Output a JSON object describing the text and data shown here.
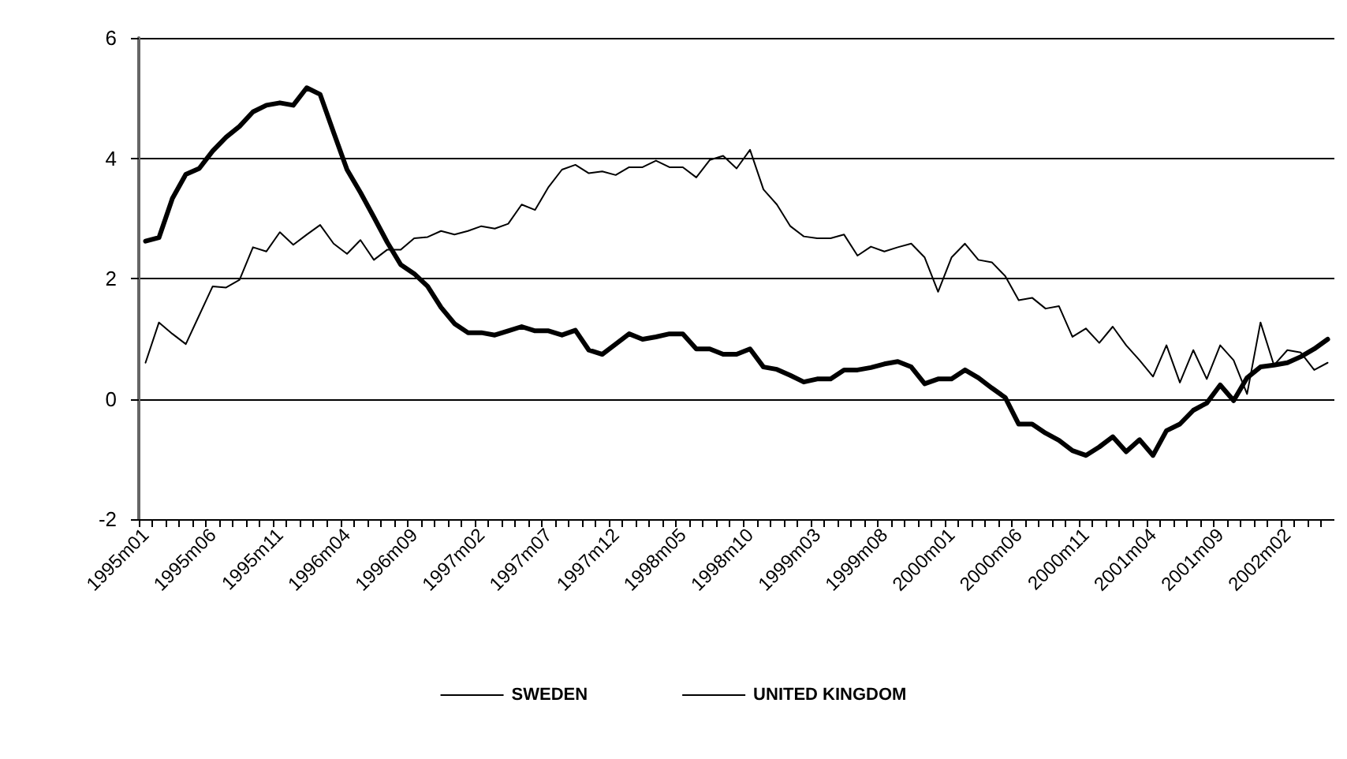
{
  "chart_data": {
    "type": "line",
    "categories": [
      "1995m01",
      null,
      null,
      null,
      null,
      "1995m06",
      null,
      null,
      null,
      null,
      "1995m11",
      null,
      null,
      null,
      null,
      "1996m04",
      null,
      null,
      null,
      null,
      "1996m09",
      null,
      null,
      null,
      null,
      "1997m02",
      null,
      null,
      null,
      null,
      "1997m07",
      null,
      null,
      null,
      null,
      "1997m12",
      null,
      null,
      null,
      null,
      "1998m05",
      null,
      null,
      null,
      null,
      "1998m10",
      null,
      null,
      null,
      null,
      "1999m03",
      null,
      null,
      null,
      null,
      "1999m08",
      null,
      null,
      null,
      null,
      "2000m01",
      null,
      null,
      null,
      null,
      "2000m06",
      null,
      null,
      null,
      null,
      "2000m11",
      null,
      null,
      null,
      null,
      "2001m04",
      null,
      null,
      null,
      null,
      "2001m09",
      null,
      null,
      null,
      null,
      "2002m02",
      null,
      null,
      null
    ],
    "series": [
      {
        "name": "SWEDEN",
        "color": "#000000",
        "values": [
          2.62,
          2.68,
          3.33,
          3.73,
          3.83,
          4.12,
          4.35,
          4.53,
          4.77,
          4.88,
          4.92,
          4.88,
          5.17,
          5.06,
          4.43,
          3.81,
          3.43,
          3.02,
          2.6,
          2.23,
          2.08,
          1.87,
          1.52,
          1.25,
          1.1,
          1.1,
          1.06,
          1.13,
          1.2,
          1.13,
          1.13,
          1.06,
          1.14,
          0.81,
          0.74,
          0.91,
          1.08,
          0.99,
          1.03,
          1.08,
          1.08,
          0.83,
          0.83,
          0.74,
          0.74,
          0.83,
          0.53,
          0.49,
          0.39,
          0.28,
          0.33,
          0.33,
          0.48,
          0.48,
          0.52,
          0.58,
          0.62,
          0.53,
          0.25,
          0.33,
          0.33,
          0.48,
          0.35,
          0.18,
          0.02,
          -0.42,
          -0.42,
          -0.57,
          -0.69,
          -0.86,
          -0.94,
          -0.8,
          -0.63,
          -0.88,
          -0.68,
          -0.94,
          -0.53,
          -0.42,
          -0.19,
          -0.07,
          0.23,
          -0.03,
          0.35,
          0.53,
          0.56,
          0.6,
          0.7,
          0.83,
          0.99
        ]
      },
      {
        "name": "UNITED KINGDOM",
        "color": "#000000",
        "values": [
          0.6,
          1.27,
          1.08,
          0.91,
          1.39,
          1.87,
          1.85,
          1.98,
          2.52,
          2.45,
          2.77,
          2.56,
          2.73,
          2.89,
          2.58,
          2.41,
          2.64,
          2.31,
          2.48,
          2.48,
          2.67,
          2.69,
          2.79,
          2.73,
          2.79,
          2.87,
          2.83,
          2.91,
          3.23,
          3.14,
          3.52,
          3.81,
          3.89,
          3.75,
          3.78,
          3.72,
          3.85,
          3.85,
          3.96,
          3.85,
          3.85,
          3.68,
          3.97,
          4.04,
          3.83,
          4.14,
          3.48,
          3.23,
          2.87,
          2.7,
          2.67,
          2.67,
          2.73,
          2.38,
          2.53,
          2.45,
          2.52,
          2.58,
          2.35,
          1.78,
          2.35,
          2.58,
          2.31,
          2.27,
          2.04,
          1.64,
          1.68,
          1.5,
          1.54,
          1.03,
          1.17,
          0.93,
          1.2,
          0.89,
          0.64,
          0.37,
          0.89,
          0.27,
          0.81,
          0.33,
          0.89,
          0.64,
          0.08,
          1.27,
          0.56,
          0.81,
          0.77,
          0.48,
          0.6
        ]
      }
    ],
    "ylim": [
      -2,
      6
    ],
    "yticks": [
      -2,
      0,
      2,
      4,
      6
    ],
    "grid": "y",
    "legend": "bottom",
    "marker": "none",
    "line_style": "solid"
  }
}
